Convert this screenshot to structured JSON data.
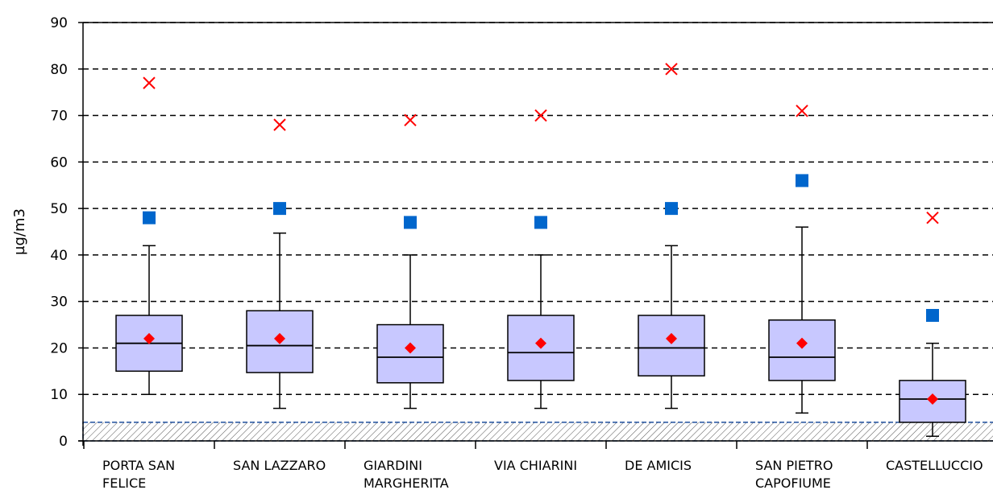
{
  "chart_data": {
    "type": "box",
    "ylabel": "µg/m3",
    "ylim": [
      0,
      90
    ],
    "yticks": [
      0,
      10,
      20,
      30,
      40,
      50,
      60,
      70,
      80,
      90
    ],
    "grid": "horizontal dashed",
    "categories": [
      [
        "PORTA SAN",
        "FELICE"
      ],
      [
        "SAN LAZZARO"
      ],
      [
        "GIARDINI",
        "MARGHERITA"
      ],
      [
        "VIA CHIARINI"
      ],
      [
        "DE AMICIS"
      ],
      [
        "SAN PIETRO",
        "CAPOFIUME"
      ],
      [
        "CASTELLUCCIO"
      ]
    ],
    "boxes": [
      {
        "whisker_low": 10,
        "q1": 15,
        "median": 21,
        "q3": 27,
        "whisker_high": 42,
        "mean": 22,
        "square": 48,
        "cross": 77
      },
      {
        "whisker_low": 7,
        "q1": 14.7,
        "median": 20.5,
        "q3": 28,
        "whisker_high": 44.7,
        "mean": 22,
        "square": 50,
        "cross": 68
      },
      {
        "whisker_low": 7,
        "q1": 12.5,
        "median": 18,
        "q3": 25,
        "whisker_high": 40,
        "mean": 20,
        "square": 47,
        "cross": 69
      },
      {
        "whisker_low": 7,
        "q1": 13,
        "median": 19,
        "q3": 27,
        "whisker_high": 40,
        "mean": 21,
        "square": 47,
        "cross": 70
      },
      {
        "whisker_low": 7,
        "q1": 14,
        "median": 20,
        "q3": 27,
        "whisker_high": 42,
        "mean": 22,
        "square": 50,
        "cross": 80
      },
      {
        "whisker_low": 6,
        "q1": 13,
        "median": 18,
        "q3": 26,
        "whisker_high": 46,
        "mean": 21,
        "square": 56,
        "cross": 71
      },
      {
        "whisker_low": 1,
        "q1": 4,
        "median": 9,
        "q3": 13,
        "whisker_high": 21,
        "mean": 9,
        "square": 27,
        "cross": 48
      }
    ],
    "hatched_band": [
      0,
      4
    ],
    "colors": {
      "box_fill": "#c8c8ff",
      "box_stroke": "#000000",
      "mean": "#ff0000",
      "square": "#0066cc",
      "cross": "#ff0000",
      "band_stroke": "#1f4e9c",
      "hatch": "#555555",
      "grid": "#000000"
    }
  }
}
